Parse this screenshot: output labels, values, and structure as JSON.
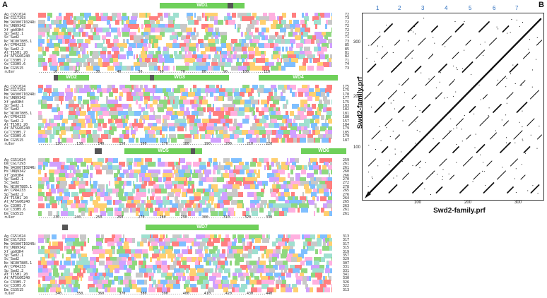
{
  "panels": {
    "a": "A",
    "b": "B"
  },
  "blocks": [
    {
      "domains": [
        {
          "label": "WD1"
        }
      ],
      "numbers": [
        "72",
        "73",
        "72",
        "72",
        "72",
        "73",
        "71",
        "73",
        "85",
        "85",
        "81",
        "82",
        "71",
        "74",
        "73",
        "73"
      ],
      "ruler": [
        "ruler",
        ".......10........20........30........40........50........60........70........80........90.......100.......110"
      ]
    },
    {
      "domains": [
        {
          "label": "WD2"
        },
        {
          "label": "WD3"
        },
        {
          "label": "WD4"
        }
      ],
      "numbers": [
        "175",
        "175",
        "178",
        "177",
        "175",
        "183",
        "182",
        "181",
        "180",
        "157",
        "184",
        "179",
        "185",
        "179",
        "187",
        "177"
      ],
      "ruler": [
        "ruler",
        "........120.......130.......140.......150.......160.......170.......180.......190.......200.......210......220"
      ]
    },
    {
      "domains": [
        {
          "label": "WD5"
        },
        {
          "label": "WD6"
        }
      ],
      "numbers": [
        "259",
        "261",
        "261",
        "260",
        "266",
        "270",
        "272",
        "278",
        "265",
        "276",
        "264",
        "265",
        "263",
        "261",
        "261",
        "261"
      ],
      "ruler": [
        "ruler",
        ".......230.......240.......250.......260.......270.......280.......290.......300.......310.......320.......330"
      ]
    },
    {
      "domains": [
        {
          "label": "WD7"
        }
      ],
      "numbers": [
        "313",
        "317",
        "317",
        "315",
        "319",
        "357",
        "329",
        "307",
        "331",
        "331",
        "341",
        "330",
        "326",
        "322",
        "313",
        "328"
      ],
      "ruler": [
        "ruler",
        "........340.......350.......360.......370.......380.......390.......400.......410.......420.......430......440"
      ]
    }
  ],
  "species": [
    "Ag_CG51024",
    "Dm_CG17293",
    "Mm_943007I024Rik",
    "Hs_UNQ9342",
    "Xf_gb03H4",
    "Sp_Swd2.1",
    "Sc_Swd2",
    "Nc_NCU07885.1",
    "An_CPR4233",
    "Sp_Swd2.2",
    "At_T15H1_20",
    "At_AT5G66240",
    "Ce_C33H5.7",
    "Ce_C33H5.6",
    "Dm_CG3515",
    "ruler"
  ],
  "dotplot": {
    "column_numbers": [
      "1",
      "2",
      "3",
      "4",
      "5",
      "6",
      "7"
    ],
    "y_ticks": [
      "300",
      "200",
      "100"
    ],
    "x_ticks": [
      "100",
      "200",
      "300"
    ],
    "xlabel": "Swd2-family.prf",
    "ylabel": "Swd2-family.prf",
    "colors": {
      "dots": "#111111",
      "labels": "#2d6fbf"
    }
  },
  "alignment_colors": [
    "#ff7f7f",
    "#7fbfff",
    "#8fd87f",
    "#ffb0e0",
    "#d0a0ff",
    "#ffd070",
    "#9fe0d0",
    "#c8c8c8"
  ]
}
